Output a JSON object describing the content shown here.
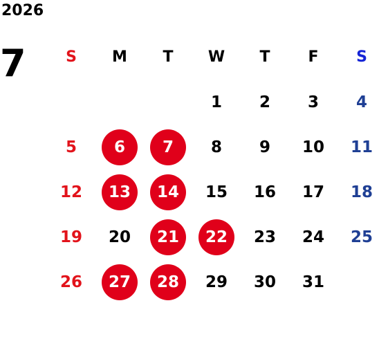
{
  "calendar": {
    "year": "2026",
    "month": "7",
    "weekdays": [
      "S",
      "M",
      "T",
      "W",
      "T",
      "F",
      "S"
    ],
    "weeks": [
      [
        "",
        "",
        "",
        "1",
        "2",
        "3",
        "4"
      ],
      [
        "5",
        "6",
        "7",
        "8",
        "9",
        "10",
        "11"
      ],
      [
        "12",
        "13",
        "14",
        "15",
        "16",
        "17",
        "18"
      ],
      [
        "19",
        "20",
        "21",
        "22",
        "23",
        "24",
        "25"
      ],
      [
        "26",
        "27",
        "28",
        "29",
        "30",
        "31",
        ""
      ]
    ],
    "highlighted_days": [
      "6",
      "7",
      "13",
      "14",
      "21",
      "22",
      "27",
      "28"
    ]
  },
  "colors": {
    "sunday": "#e2131b",
    "saturday_header": "#1524d6",
    "saturday": "#1f3f94",
    "highlight": "#e0001a",
    "default_text": "#000000"
  }
}
